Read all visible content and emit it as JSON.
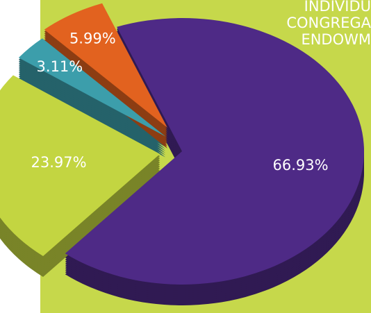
{
  "chart_data": {
    "type": "pie",
    "values": [
      66.93,
      23.97,
      3.11,
      5.99
    ],
    "value_labels": [
      "66.93%",
      "23.97%",
      "3.11%",
      "5.99%"
    ],
    "colors": [
      "#4e2a86",
      "#c3d541",
      "#3c9eab",
      "#e2621f"
    ],
    "annotations": [
      "INDIVIDU",
      "CONGREGA",
      "ENDOWM"
    ]
  }
}
